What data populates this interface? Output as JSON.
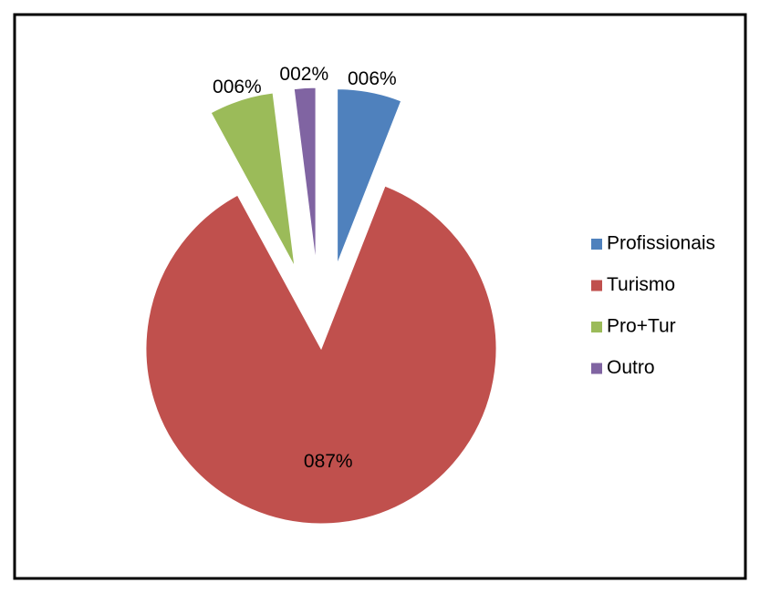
{
  "chart_data": {
    "type": "pie",
    "categories": [
      "Profissionais",
      "Turismo",
      "Pro+Tur",
      "Outro"
    ],
    "values": [
      6,
      87,
      6,
      2
    ],
    "value_labels": [
      "006%",
      "087%",
      "006%",
      "002%"
    ],
    "colors": [
      "#4f81bd",
      "#c0504d",
      "#9bbb59",
      "#8064a2"
    ],
    "legend": "right"
  }
}
